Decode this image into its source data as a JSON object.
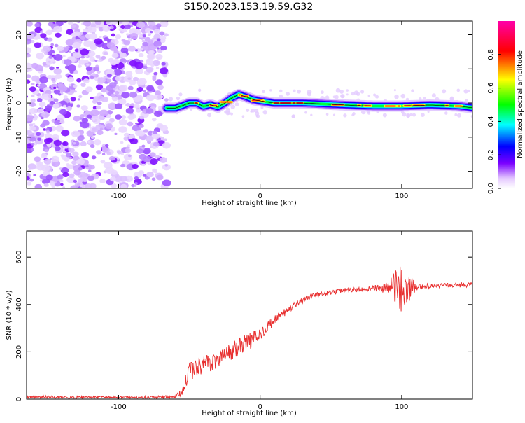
{
  "title": "S150.2023.153.19.59.G32",
  "chart_data": [
    {
      "type": "heatmap",
      "xlabel": "Height of straight line (km)",
      "ylabel": "Frequency (Hz)",
      "xlim": [
        -165,
        150
      ],
      "ylim": [
        -25,
        24
      ],
      "xticks": [
        -100,
        0,
        100
      ],
      "yticks": [
        20,
        10,
        0,
        -10,
        -20
      ],
      "colorbar": {
        "label": "Normalized spectral amplitude",
        "range": [
          0,
          1
        ],
        "ticks": [
          "0.0",
          "0.2",
          "0.4",
          "0.6",
          "0.8"
        ],
        "colors": [
          "#ffffff",
          "#7a00ff",
          "#0000ff",
          "#00ffff",
          "#00ff00",
          "#ffff00",
          "#ff0000",
          "#ff00aa"
        ]
      },
      "noise_region_x": [
        -165,
        -66
      ],
      "ridge": {
        "name": "dominant frequency",
        "x": [
          -66,
          -60,
          -55,
          -50,
          -45,
          -40,
          -35,
          -30,
          -25,
          -20,
          -15,
          -10,
          -5,
          0,
          10,
          20,
          30,
          40,
          60,
          80,
          100,
          120,
          140,
          150
        ],
        "y": [
          -1.5,
          -1.5,
          -0.8,
          0,
          0,
          -1,
          -0.5,
          -1.2,
          0,
          1.5,
          2.5,
          1.8,
          1,
          0.6,
          0,
          0,
          0,
          -0.2,
          -0.6,
          -0.9,
          -0.9,
          -0.6,
          -0.9,
          -1.4
        ]
      }
    },
    {
      "type": "line",
      "xlabel": "Height of straight line (km)",
      "ylabel": "SNR (10 * v/v)",
      "xlim": [
        -165,
        150
      ],
      "ylim": [
        0,
        710
      ],
      "xticks": [
        -100,
        0,
        100
      ],
      "yticks": [
        0,
        200,
        400,
        600
      ],
      "color": "#e83030",
      "series": [
        {
          "x": [
            -165,
            -140,
            -120,
            -100,
            -80,
            -60,
            -56,
            -50,
            -44,
            -40,
            -32,
            -26,
            -20,
            -14,
            -8,
            -2,
            4,
            10,
            16,
            22,
            28,
            34,
            40,
            50,
            60,
            70,
            80,
            90,
            100,
            110,
            120,
            130,
            140,
            150
          ],
          "y": [
            10,
            8,
            8,
            8,
            8,
            10,
            30,
            110,
            140,
            145,
            160,
            185,
            200,
            225,
            245,
            265,
            300,
            330,
            360,
            385,
            410,
            430,
            440,
            450,
            460,
            462,
            468,
            470,
            470,
            475,
            478,
            480,
            482,
            484
          ],
          "amplitude": [
            6,
            5,
            5,
            5,
            5,
            6,
            20,
            45,
            45,
            40,
            40,
            40,
            40,
            35,
            35,
            30,
            25,
            22,
            18,
            16,
            14,
            12,
            12,
            10,
            10,
            10,
            12,
            25,
            110,
            15,
            10,
            10,
            10,
            10
          ]
        }
      ]
    }
  ]
}
